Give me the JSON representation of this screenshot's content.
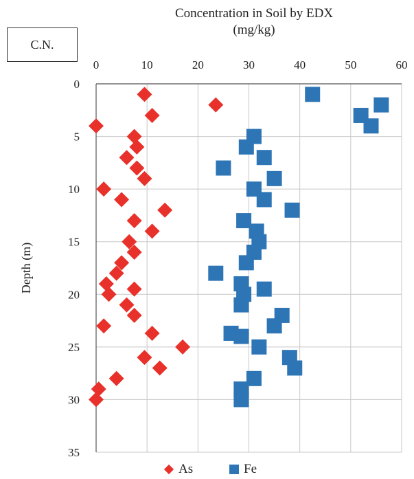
{
  "panel_label": "C.N.",
  "chart_data": {
    "type": "scatter",
    "title_line1": "Concentration in Soil by EDX",
    "title_line2": "(mg/kg)",
    "xlabel": "",
    "ylabel": "Depth (m)",
    "xlim": [
      0,
      60
    ],
    "ylim": [
      0,
      35
    ],
    "y_inverted": true,
    "x_axis_position": "top",
    "x_ticks": [
      0,
      10,
      20,
      30,
      40,
      50,
      60
    ],
    "y_ticks": [
      0,
      5,
      10,
      15,
      20,
      25,
      30,
      35
    ],
    "grid": true,
    "legend_position": "bottom",
    "series": [
      {
        "name": "As",
        "marker": "diamond",
        "color": "#e8312a",
        "points": [
          [
            9.5,
            1
          ],
          [
            23.5,
            2
          ],
          [
            11,
            3
          ],
          [
            0,
            4
          ],
          [
            7.5,
            5
          ],
          [
            8,
            6
          ],
          [
            6,
            7
          ],
          [
            8,
            8
          ],
          [
            9.5,
            9
          ],
          [
            1.5,
            10
          ],
          [
            5,
            11
          ],
          [
            13.5,
            12
          ],
          [
            7.5,
            13
          ],
          [
            11,
            14
          ],
          [
            6.5,
            15
          ],
          [
            7.5,
            16
          ],
          [
            5,
            17
          ],
          [
            4,
            18
          ],
          [
            2,
            19
          ],
          [
            7.5,
            19.5
          ],
          [
            2.5,
            20
          ],
          [
            6,
            21
          ],
          [
            7.5,
            22
          ],
          [
            1.5,
            23
          ],
          [
            11,
            23.7
          ],
          [
            17,
            25
          ],
          [
            9.5,
            26
          ],
          [
            12.5,
            27
          ],
          [
            4,
            28
          ],
          [
            0.5,
            29
          ],
          [
            0,
            30
          ]
        ]
      },
      {
        "name": "Fe",
        "marker": "square",
        "color": "#2e75b6",
        "points": [
          [
            42.5,
            1
          ],
          [
            56,
            2
          ],
          [
            52,
            3
          ],
          [
            54,
            4
          ],
          [
            31,
            5
          ],
          [
            29.5,
            6
          ],
          [
            33,
            7
          ],
          [
            25,
            8
          ],
          [
            35,
            9
          ],
          [
            31,
            10
          ],
          [
            33,
            11
          ],
          [
            38.5,
            12
          ],
          [
            29,
            13
          ],
          [
            31.5,
            14
          ],
          [
            32,
            15
          ],
          [
            31,
            16
          ],
          [
            29.5,
            17
          ],
          [
            23.5,
            18
          ],
          [
            28.5,
            19
          ],
          [
            33,
            19.5
          ],
          [
            29,
            20
          ],
          [
            28.5,
            21
          ],
          [
            36.5,
            22
          ],
          [
            35,
            23
          ],
          [
            26.5,
            23.7
          ],
          [
            28.5,
            24
          ],
          [
            32,
            25
          ],
          [
            38,
            26
          ],
          [
            39,
            27
          ],
          [
            31,
            28
          ],
          [
            28.5,
            29
          ],
          [
            28.5,
            30
          ]
        ]
      }
    ]
  }
}
